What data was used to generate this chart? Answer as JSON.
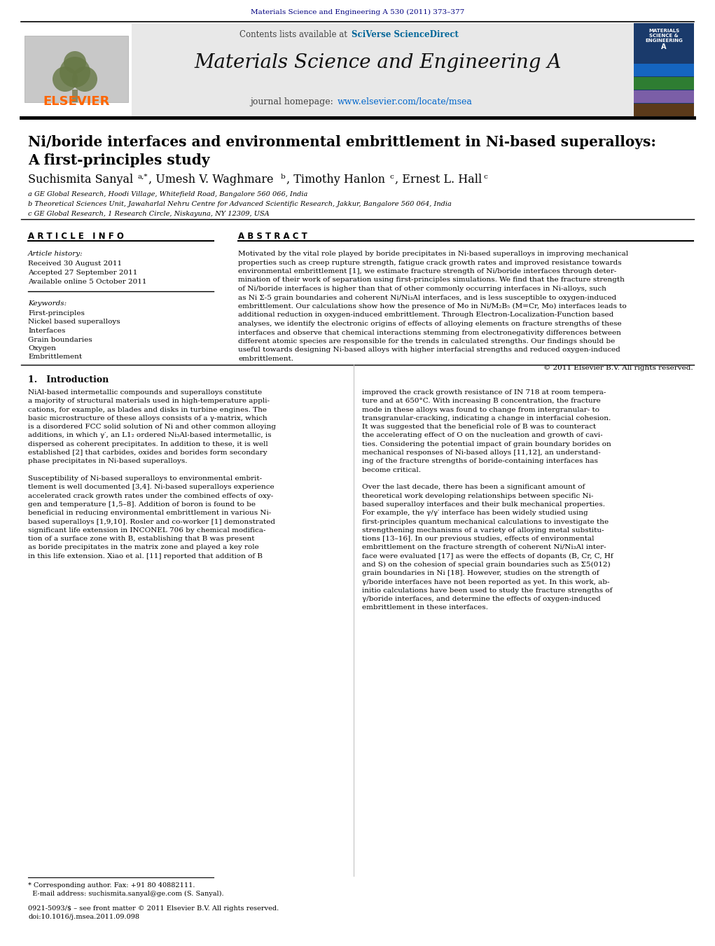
{
  "background_color": "#ffffff",
  "top_bar_text": "Materials Science and Engineering A 530 (2011) 373–377",
  "top_bar_color": "#000080",
  "header_bg": "#e8e8e8",
  "journal_name": "Materials Science and Engineering A",
  "contents_text": "Contents lists available at SciVerse ScienceDirect",
  "sciverse_color": "#006600",
  "sciencedirect_color": "#0066cc",
  "journal_homepage": "journal homepage: www.elsevier.com/locate/msea",
  "elsevier_color": "#ff6600",
  "paper_title_line1": "Ni/boride interfaces and environmental embrittlement in Ni-based superalloys:",
  "paper_title_line2": "A first-principles study",
  "affil_a": "a GE Global Research, Hoodi Village, Whitefield Road, Bangalore 560 066, India",
  "affil_b": "b Theoretical Sciences Unit, Jawaharlal Nehru Centre for Advanced Scientific Research, Jakkur, Bangalore 560 064, India",
  "affil_c": "c GE Global Research, 1 Research Circle, Niskayuna, NY 12309, USA",
  "article_info_header": "A R T I C L E   I N F O",
  "abstract_header": "A B S T R A C T",
  "article_history_label": "Article history:",
  "received": "Received 30 August 2011",
  "accepted": "Accepted 27 September 2011",
  "available": "Available online 5 October 2011",
  "keywords_label": "Keywords:",
  "keywords": [
    "First-principles",
    "Nickel based superalloys",
    "Interfaces",
    "Grain boundaries",
    "Oxygen",
    "Embrittlement"
  ],
  "copyright": "© 2011 Elsevier B.V. All rights reserved.",
  "section1_title": "1.   Introduction",
  "abstract_lines": [
    "Motivated by the vital role played by boride precipitates in Ni-based superalloys in improving mechanical",
    "properties such as creep rupture strength, fatigue crack growth rates and improved resistance towards",
    "environmental embrittlement [1], we estimate fracture strength of Ni/boride interfaces through deter-",
    "mination of their work of separation using first-principles simulations. We find that the fracture strength",
    "of Ni/boride interfaces is higher than that of other commonly occurring interfaces in Ni-alloys, such",
    "as Ni Σ-5 grain boundaries and coherent Ni/Ni₃Al interfaces, and is less susceptible to oxygen-induced",
    "embrittlement. Our calculations show how the presence of Mo in Ni/M₂B₅ (M=Cr, Mo) interfaces leads to",
    "additional reduction in oxygen-induced embrittlement. Through Electron-Localization-Function based",
    "analyses, we identify the electronic origins of effects of alloying elements on fracture strengths of these",
    "interfaces and observe that chemical interactions stemming from electronegativity differences between",
    "different atomic species are responsible for the trends in calculated strengths. Our findings should be",
    "useful towards designing Ni-based alloys with higher interfacial strengths and reduced oxygen-induced",
    "embrittlement."
  ],
  "intro_col1_lines": [
    "NiAl-based intermetallic compounds and superalloys constitute",
    "a majority of structural materials used in high-temperature appli-",
    "cations, for example, as blades and disks in turbine engines. The",
    "basic microstructure of these alloys consists of a γ-matrix, which",
    "is a disordered FCC solid solution of Ni and other common alloying",
    "additions, in which γ′, an L1₂ ordered Ni₃Al-based intermetallic, is",
    "dispersed as coherent precipitates. In addition to these, it is well",
    "established [2] that carbides, oxides and borides form secondary",
    "phase precipitates in Ni-based superalloys.",
    "",
    "Susceptibility of Ni-based superalloys to environmental embrit-",
    "tlement is well documented [3,4]. Ni-based superalloys experience",
    "accelerated crack growth rates under the combined effects of oxy-",
    "gen and temperature [1,5–8]. Addition of boron is found to be",
    "beneficial in reducing environmental embrittlement in various Ni-",
    "based superalloys [1,9,10]. Rosler and co-worker [1] demonstrated",
    "significant life extension in INCONEL 706 by chemical modifica-",
    "tion of a surface zone with B, establishing that B was present",
    "as boride precipitates in the matrix zone and played a key role",
    "in this life extension. Xiao et al. [11] reported that addition of B"
  ],
  "intro_col2_lines": [
    "improved the crack growth resistance of IN 718 at room tempera-",
    "ture and at 650°C. With increasing B concentration, the fracture",
    "mode in these alloys was found to change from intergranular- to",
    "transgranular-cracking, indicating a change in interfacial cohesion.",
    "It was suggested that the beneficial role of B was to counteract",
    "the accelerating effect of O on the nucleation and growth of cavi-",
    "ties. Considering the potential impact of grain boundary borides on",
    "mechanical responses of Ni-based alloys [11,12], an understand-",
    "ing of the fracture strengths of boride-containing interfaces has",
    "become critical.",
    "",
    "Over the last decade, there has been a significant amount of",
    "theoretical work developing relationships between specific Ni-",
    "based superalloy interfaces and their bulk mechanical properties.",
    "For example, the γ/γ′ interface has been widely studied using",
    "first-principles quantum mechanical calculations to investigate the",
    "strengthening mechanisms of a variety of alloying metal substitu-",
    "tions [13–16]. In our previous studies, effects of environmental",
    "embrittlement on the fracture strength of coherent Ni/Ni₃Al inter-",
    "face were evaluated [17] as were the effects of dopants (B, Cr, C, Hf",
    "and S) on the cohesion of special grain boundaries such as Σ5(012)",
    "grain boundaries in Ni [18]. However, studies on the strength of",
    "γ/boride interfaces have not been reported as yet. In this work, ab-",
    "initio calculations have been used to study the fracture strengths of",
    "γ/boride interfaces, and determine the effects of oxygen-induced",
    "embrittlement in these interfaces."
  ],
  "footer_line1": "* Corresponding author. Fax: +91 80 40882111.",
  "footer_line2": "  E-mail address: suchismita.sanyal@ge.com (S. Sanyal).",
  "footer_line3": "0921-5093/$ – see front matter © 2011 Elsevier B.V. All rights reserved.",
  "footer_line4": "doi:10.1016/j.msea.2011.09.098"
}
